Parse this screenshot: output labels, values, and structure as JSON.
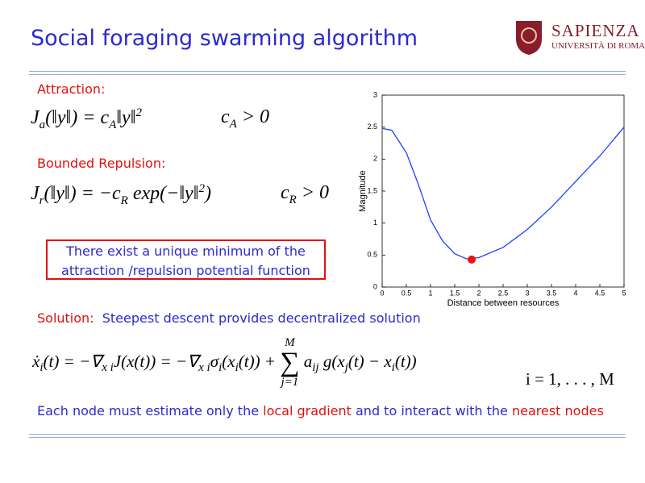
{
  "header": {
    "title": "Social foraging swarming algorithm",
    "logo": {
      "name": "SAPIENZA",
      "subtitle": "UNIVERSITÀ DI ROMA"
    }
  },
  "attraction": {
    "label": "Attraction:",
    "formula": [
      {
        "t": "J"
      },
      {
        "sub": "a"
      },
      {
        "t": "(‖y‖) = c"
      },
      {
        "sub": "A"
      },
      {
        "t": "‖y‖"
      },
      {
        "sup": "2"
      }
    ],
    "condition": [
      {
        "t": "c"
      },
      {
        "sub": "A"
      },
      {
        "t": " > 0"
      }
    ]
  },
  "repulsion": {
    "label": "Bounded Repulsion:",
    "formula": [
      {
        "t": "J"
      },
      {
        "sub": "r"
      },
      {
        "t": "(‖y‖) = −c"
      },
      {
        "sub": "R"
      },
      {
        "t": " exp(−‖y‖"
      },
      {
        "sup": "2"
      },
      {
        "t": ")"
      }
    ],
    "condition": [
      {
        "t": "c"
      },
      {
        "sub": "R"
      },
      {
        "t": " > 0"
      }
    ]
  },
  "note": "There exist a unique minimum of the attraction /repulsion  potential function",
  "solution": {
    "label": "Solution:",
    "text": "Steepest descent provides decentralized solution",
    "formula": [
      {
        "t": "ẋ"
      },
      {
        "sub": "i"
      },
      {
        "t": "(t) = −∇"
      },
      {
        "sub": "x i"
      },
      {
        "t": "J(x(t)) = −∇"
      },
      {
        "sub": "x i"
      },
      {
        "t": "σ"
      },
      {
        "sub": "i"
      },
      {
        "t": "(x"
      },
      {
        "sub": "i"
      },
      {
        "t": "(t)) + "
      },
      {
        "sum": "∑",
        "over": "M",
        "under": "j=1"
      },
      {
        "t": " a"
      },
      {
        "sub": "ij"
      },
      {
        "t": " g(x"
      },
      {
        "sub": "j"
      },
      {
        "t": "(t) − x"
      },
      {
        "sub": "i"
      },
      {
        "t": "(t))"
      }
    ],
    "range": [
      {
        "t": "i = 1, . . . , M"
      }
    ]
  },
  "footer": {
    "parts": [
      {
        "text": "Each node must estimate only the ",
        "highlight": false
      },
      {
        "text": "local gradient",
        "highlight": true
      },
      {
        "text": " and to interact with the ",
        "highlight": false
      },
      {
        "text": "nearest nodes",
        "highlight": true
      }
    ],
    "color": "#2a2ad0",
    "highlight_color": "#e01010"
  },
  "chart_data": {
    "type": "line",
    "xlabel": "Distance between resources",
    "ylabel": "Magnitude",
    "x": [
      0,
      0.2,
      0.5,
      0.75,
      1.0,
      1.25,
      1.5,
      1.75,
      2.0,
      2.5,
      3.0,
      3.5,
      4.0,
      4.5,
      5.0
    ],
    "values": [
      2.48,
      2.45,
      2.1,
      1.6,
      1.05,
      0.72,
      0.52,
      0.44,
      0.46,
      0.62,
      0.9,
      1.25,
      1.65,
      2.05,
      2.5
    ],
    "color": "#1f3fff",
    "marker": {
      "x": 1.85,
      "y": 0.43,
      "color": "#ee1111"
    },
    "xlim": [
      0,
      5
    ],
    "ylim": [
      0,
      3
    ],
    "xticks": [
      0,
      0.5,
      1,
      1.5,
      2,
      2.5,
      3,
      3.5,
      4,
      4.5,
      5
    ],
    "yticks": [
      0,
      0.5,
      1,
      1.5,
      2,
      2.5,
      3
    ]
  }
}
